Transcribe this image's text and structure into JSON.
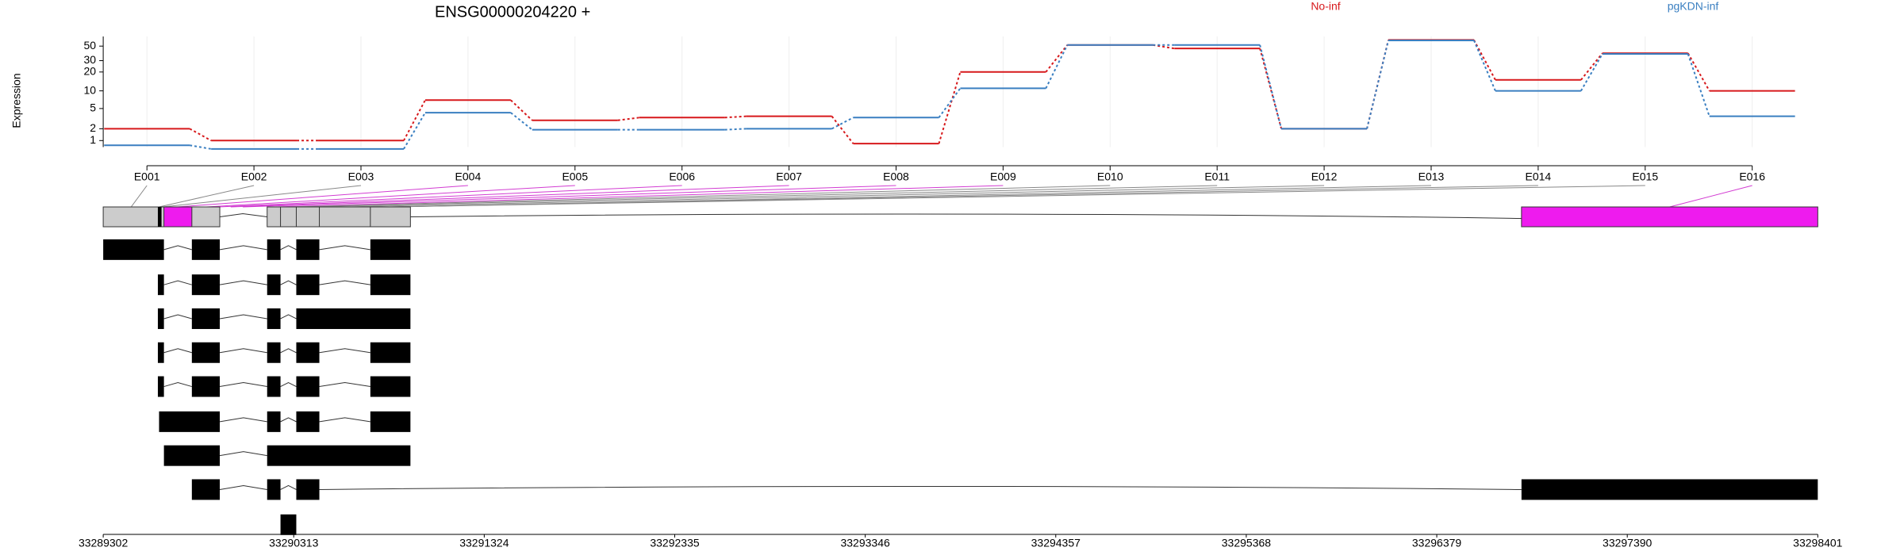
{
  "chart_data": {
    "type": "line",
    "title": "ENSG00000204220 +",
    "y_label": "Expression",
    "categories": [
      "E001",
      "E002",
      "E003",
      "E004",
      "E005",
      "E006",
      "E007",
      "E008",
      "E009",
      "E010",
      "E011",
      "E012",
      "E013",
      "E014",
      "E015",
      "E016"
    ],
    "series": [
      {
        "name": "No-inf",
        "color": "#d7191c",
        "values": [
          2,
          1,
          1,
          7,
          3,
          3.4,
          3.6,
          0.8,
          20,
          52,
          46,
          2,
          62,
          15,
          39,
          10
        ]
      },
      {
        "name": "pgKDN-inf",
        "color": "#3a7fc1",
        "values": [
          0.7,
          0.5,
          0.5,
          4.2,
          1.9,
          1.9,
          2,
          3.4,
          11,
          52,
          52,
          2,
          61,
          10,
          38,
          3.6
        ]
      }
    ],
    "y_scale": "log1p",
    "ylim": [
      0.6,
      70
    ],
    "yticks": [
      1,
      2,
      5,
      10,
      20,
      30,
      50
    ],
    "grid": true
  },
  "genomic_axis": {
    "xlim": [
      33289302,
      33298401
    ],
    "xticks": [
      33289302,
      33290313,
      33291324,
      33292335,
      33293346,
      33294357,
      33295368,
      33296379,
      33297390,
      33298401
    ]
  }
}
